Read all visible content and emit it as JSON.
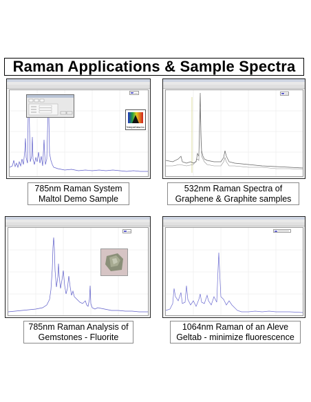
{
  "title": "Raman Applications & Sample Spectra",
  "panels": [
    {
      "caption_line1": "785nm Raman System",
      "caption_line2": "Maltol Demo Sample",
      "trace_color": "#5a5ac8",
      "logo_label": "TeledyneDalsa Inc."
    },
    {
      "caption_line1": "532nm Raman Spectra of",
      "caption_line2": "Graphene  & Graphite samples",
      "trace_colors": [
        "#606060",
        "#8a8a8a"
      ]
    },
    {
      "caption_line1": "785nm Raman Analysis of",
      "caption_line2": "Gemstones - Fluorite",
      "trace_color": "#5a5ac8"
    },
    {
      "caption_line1": "1064nm Raman of an Aleve",
      "caption_line2": "Geltab - minimize fluorescence",
      "trace_color": "#6a6ad0"
    }
  ],
  "colors": {
    "accent": "#5a5ac8",
    "frame": "#222222"
  }
}
